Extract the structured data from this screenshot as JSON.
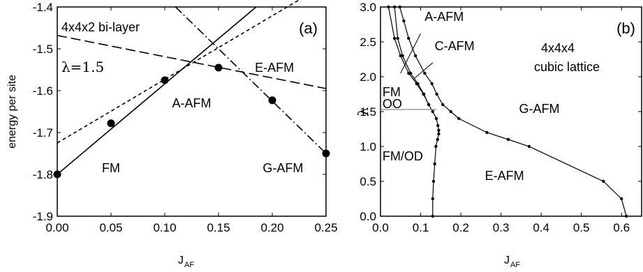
{
  "chart_data": [
    {
      "panel_label": "(a)",
      "type": "line",
      "annotation_title": "4x4x2 bi-layer",
      "annotation_lambda": "λ=1.5",
      "ylabel": "energy per site",
      "xlabel_main": "J",
      "xlabel_sub": "AF",
      "xlim": [
        0.0,
        0.25
      ],
      "ylim": [
        -1.9,
        -1.4
      ],
      "xticks": [
        0.0,
        0.05,
        0.1,
        0.15,
        0.2,
        0.25
      ],
      "xtick_labels": [
        "0.00",
        "0.05",
        "0.10",
        "0.15",
        "0.20",
        "0.25"
      ],
      "yticks": [
        -1.9,
        -1.8,
        -1.7,
        -1.6,
        -1.5,
        -1.4
      ],
      "ytick_labels": [
        "-1.9",
        "-1.8",
        "-1.7",
        "-1.6",
        "-1.5",
        "-1.4"
      ],
      "series": [
        {
          "name": "FM",
          "style": "solid",
          "x": [
            0.0,
            0.185
          ],
          "y": [
            -1.8,
            -1.4
          ]
        },
        {
          "name": "A-AFM",
          "style": "short-dash",
          "x": [
            0.0,
            0.25
          ],
          "y": [
            -1.725,
            -1.345
          ]
        },
        {
          "name": "E-AFM",
          "style": "long-dash",
          "x": [
            0.0,
            0.25
          ],
          "y": [
            -1.468,
            -1.595
          ]
        },
        {
          "name": "G-AFM",
          "style": "dash-dot",
          "x": [
            0.11,
            0.25
          ],
          "y": [
            -1.4,
            -1.75
          ]
        }
      ],
      "points": [
        {
          "x": 0.0,
          "y": -1.8
        },
        {
          "x": 0.05,
          "y": -1.678
        },
        {
          "x": 0.1,
          "y": -1.575
        },
        {
          "x": 0.15,
          "y": -1.545
        },
        {
          "x": 0.2,
          "y": -1.623
        },
        {
          "x": 0.25,
          "y": -1.75
        }
      ],
      "labels": [
        {
          "text": "FM",
          "x": 0.05,
          "y": -1.795
        },
        {
          "text": "A-AFM",
          "x": 0.125,
          "y": -1.64
        },
        {
          "text": "E-AFM",
          "x": 0.202,
          "y": -1.555
        },
        {
          "text": "G-AFM",
          "x": 0.21,
          "y": -1.795
        }
      ]
    },
    {
      "panel_label": "(b)",
      "type": "line",
      "annotation_title": [
        "4x4x4",
        "cubic lattice"
      ],
      "ylabel": "λ",
      "xlabel_main": "J",
      "xlabel_sub": "AF",
      "xlim": [
        0.0,
        0.65
      ],
      "ylim": [
        0.0,
        3.0
      ],
      "xticks": [
        0.0,
        0.1,
        0.2,
        0.3,
        0.4,
        0.5,
        0.6
      ],
      "xtick_labels": [
        "0.0",
        "0.1",
        "0.2",
        "0.3",
        "0.4",
        "0.5",
        "0.6"
      ],
      "yticks": [
        0.0,
        0.5,
        1.0,
        1.5,
        2.0,
        2.5,
        3.0
      ],
      "ytick_labels": [
        "0.0",
        "0.5",
        "1.0",
        "1.5",
        "2.0",
        "2.5",
        "3.0"
      ],
      "series": [
        {
          "name": "",
          "x": [
            0.13,
            0.13,
            0.132,
            0.135,
            0.138,
            0.142,
            0.145,
            0.145,
            0.143,
            0.139,
            0.13,
            0.12,
            0.107,
            0.09,
            0.07,
            0.05,
            0.035,
            0.02
          ],
          "y": [
            0.0,
            0.25,
            0.5,
            0.75,
            1.0,
            1.1,
            1.18,
            1.23,
            1.3,
            1.4,
            1.5,
            1.6,
            1.75,
            1.9,
            2.05,
            2.3,
            2.55,
            3.0
          ]
        },
        {
          "name": "",
          "x": [
            0.12,
            0.108,
            0.093,
            0.075,
            0.055,
            0.043,
            0.035
          ],
          "y": [
            1.6,
            1.75,
            1.9,
            2.05,
            2.3,
            2.55,
            3.0
          ]
        },
        {
          "name": "",
          "x": [
            0.612,
            0.6,
            0.555,
            0.37,
            0.318,
            0.265,
            0.195,
            0.175,
            0.155,
            0.14,
            0.128,
            0.11,
            0.087,
            0.07,
            0.058,
            0.048
          ],
          "y": [
            0.0,
            0.25,
            0.5,
            1.0,
            1.1,
            1.2,
            1.4,
            1.5,
            1.6,
            1.75,
            1.9,
            2.05,
            2.3,
            2.55,
            2.8,
            3.0
          ]
        },
        {
          "name": "",
          "x": [
            0.0,
            0.14
          ],
          "y": [
            1.53,
            1.53
          ]
        }
      ],
      "labels": [
        {
          "text": "A-AFM",
          "x": 0.11,
          "y": 2.8
        },
        {
          "text": "C-AFM",
          "x": 0.135,
          "y": 2.38
        },
        {
          "text": "FM",
          "x": 0.005,
          "y": 1.72
        },
        {
          "text": "OO",
          "x": 0.005,
          "y": 1.55
        },
        {
          "text": "G-AFM",
          "x": 0.345,
          "y": 1.48
        },
        {
          "text": "FM/OD",
          "x": 0.005,
          "y": 0.8
        },
        {
          "text": "E-AFM",
          "x": 0.26,
          "y": 0.52
        }
      ]
    }
  ]
}
